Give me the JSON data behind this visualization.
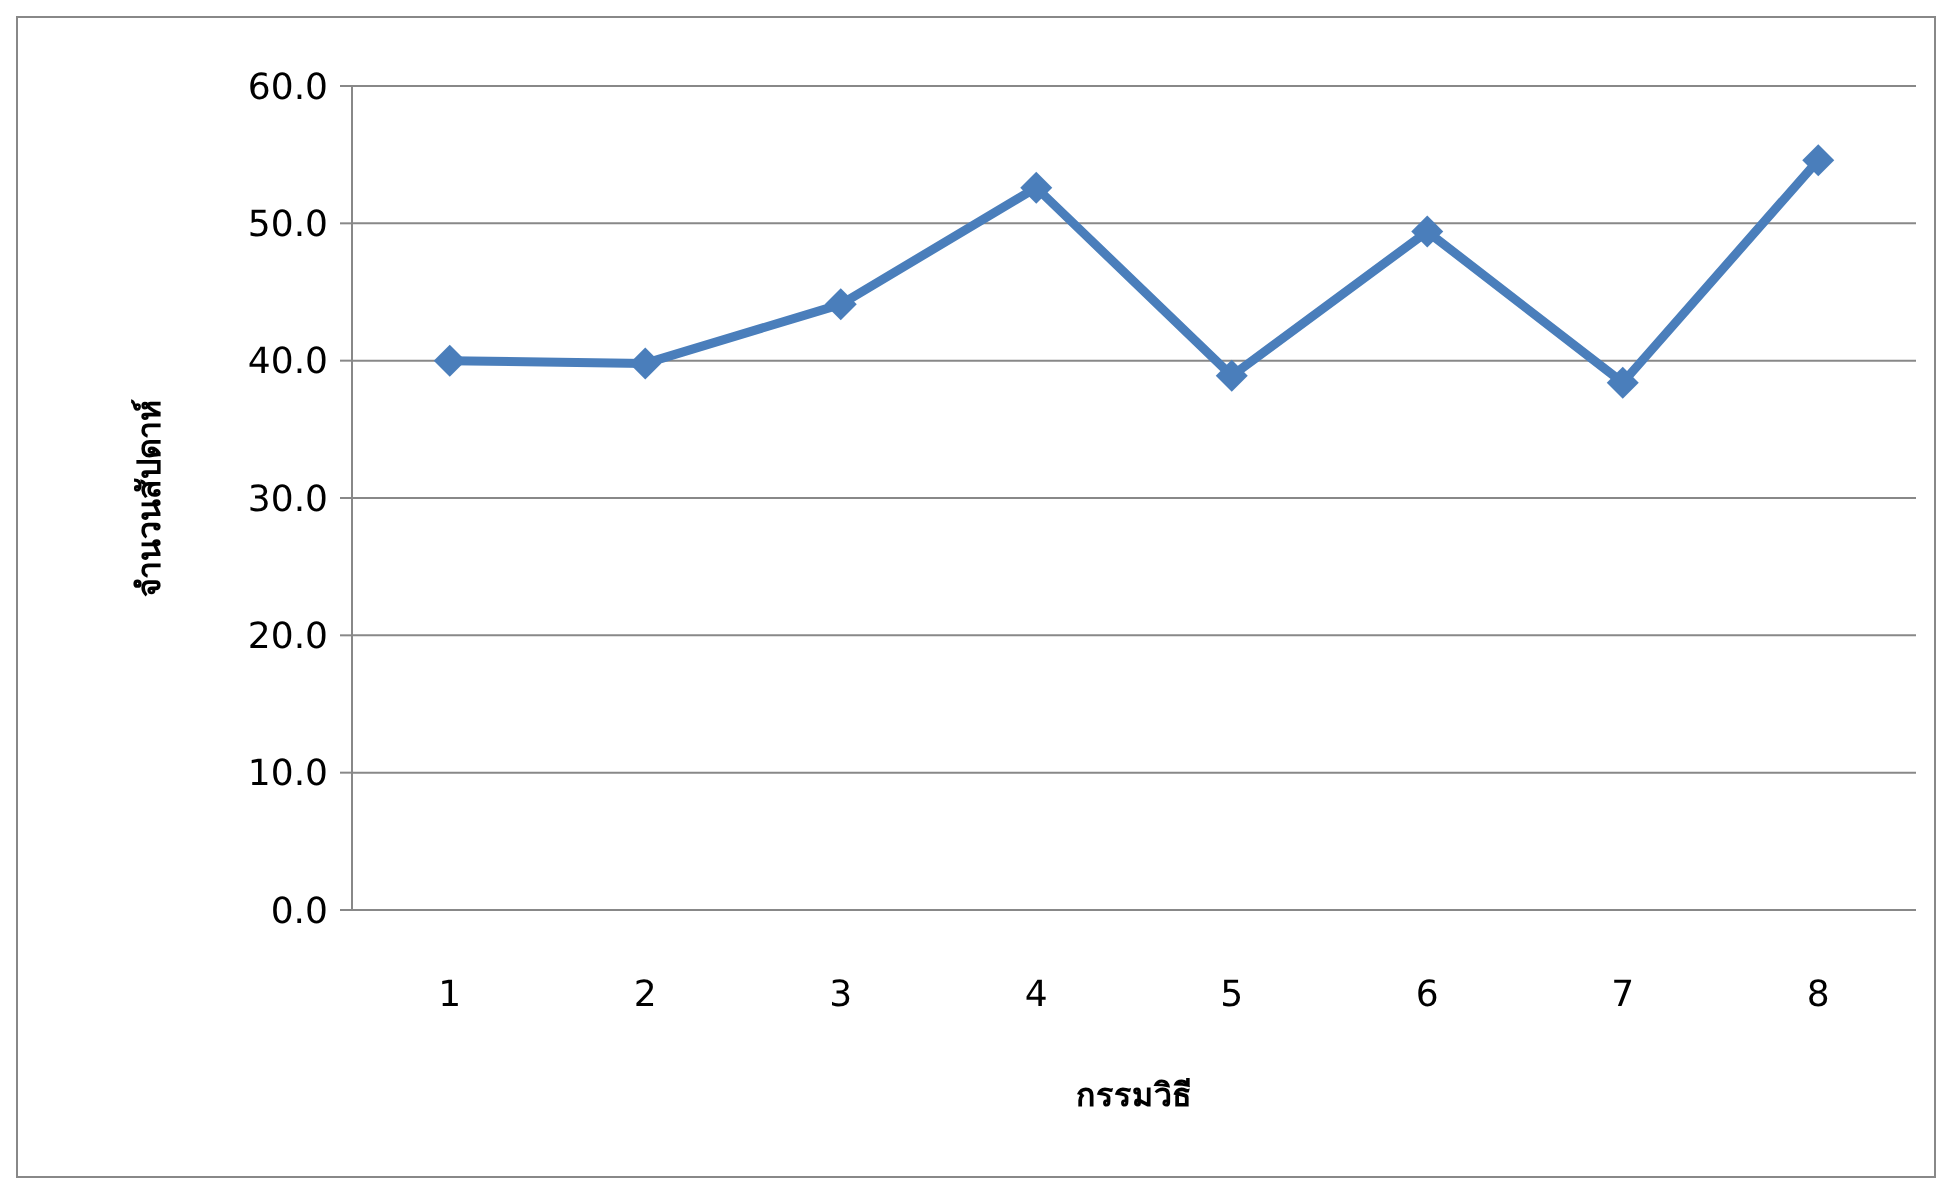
{
  "chart_data": {
    "type": "line",
    "xlabel": "กรรมวิธี",
    "ylabel": "จำนวนสัปดาห์",
    "categories": [
      "1",
      "2",
      "3",
      "4",
      "5",
      "6",
      "7",
      "8"
    ],
    "series": [
      {
        "color": "#4a7ebb",
        "values": [
          40.0,
          39.8,
          44.1,
          52.6,
          38.9,
          49.4,
          38.4,
          54.6
        ]
      }
    ],
    "ylim": [
      0,
      60
    ],
    "yticks": [
      {
        "value": 0,
        "label": "0.0"
      },
      {
        "value": 10,
        "label": "10.0"
      },
      {
        "value": 20,
        "label": "20.0"
      },
      {
        "value": 30,
        "label": "30.0"
      },
      {
        "value": 40,
        "label": "40.0"
      },
      {
        "value": 50,
        "label": "50.0"
      },
      {
        "value": 60,
        "label": "60.0"
      }
    ],
    "grid": "y",
    "marker": "diamond",
    "line_style": "solid"
  }
}
